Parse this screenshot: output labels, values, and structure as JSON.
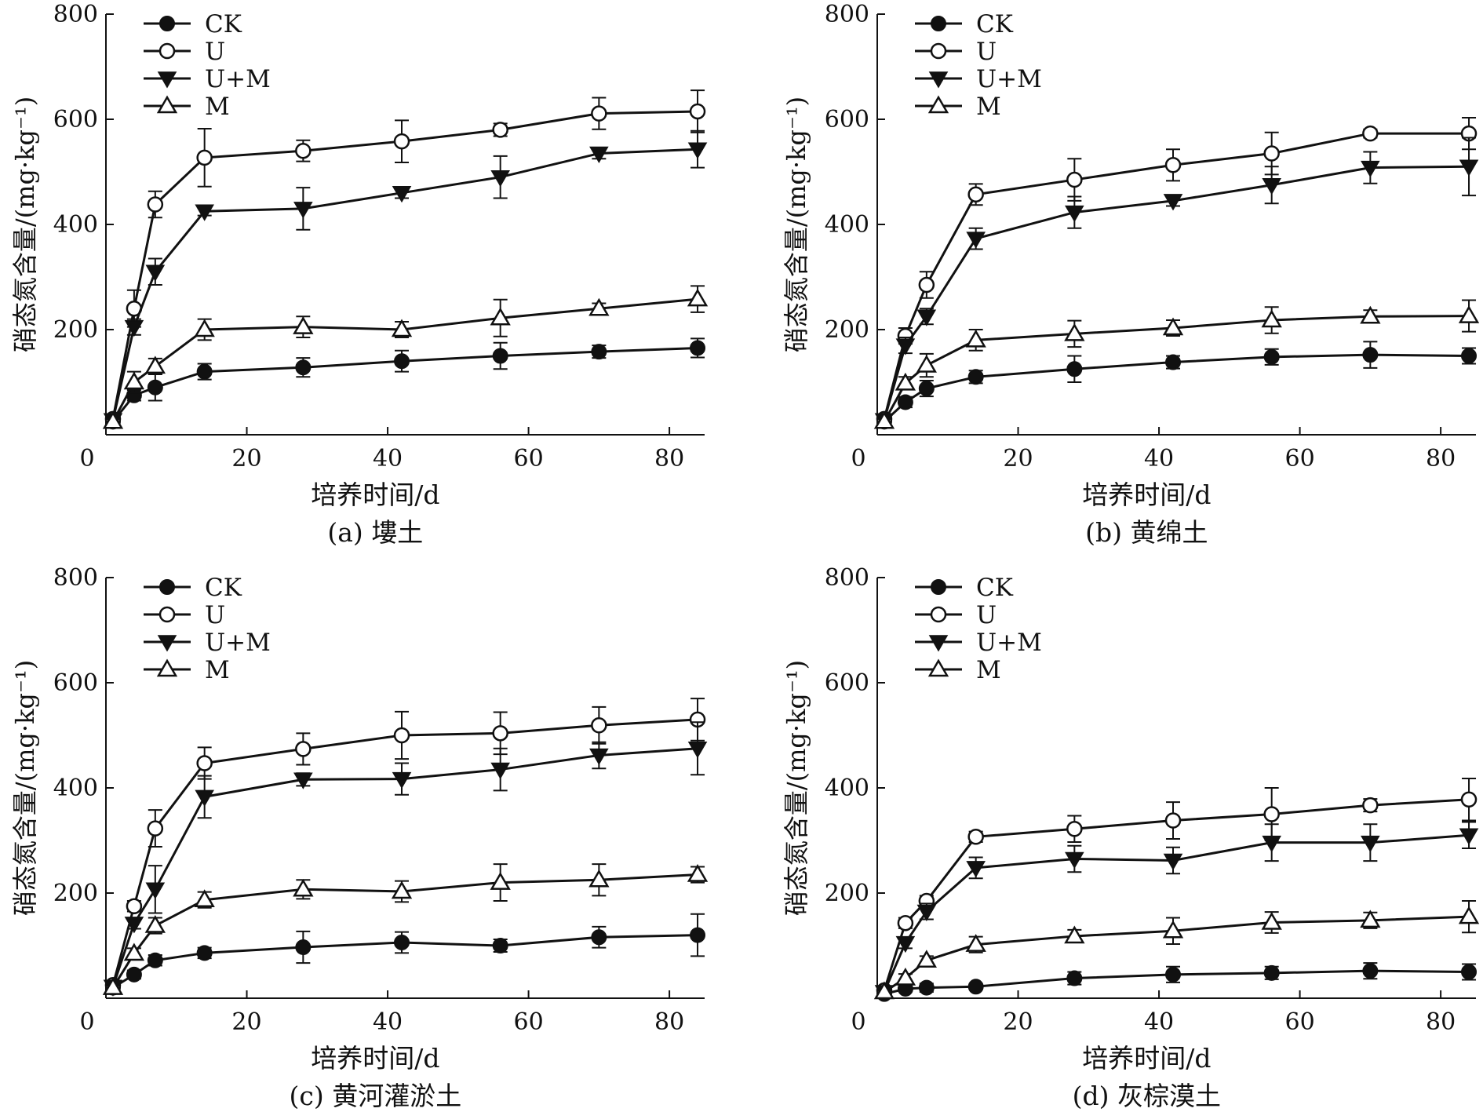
{
  "chart_data": [
    {
      "type": "line",
      "caption": "(a) 塿土",
      "xlabel": "培养时间/d",
      "ylabel": "硝态氮含量/(mg·kg⁻¹)",
      "xlim": [
        0,
        85
      ],
      "ylim": [
        0,
        800
      ],
      "xticks": [
        0,
        20,
        40,
        60,
        80
      ],
      "yticks": [
        200,
        400,
        600,
        800
      ],
      "legend_position": "top-left",
      "x": [
        1,
        4,
        7,
        14,
        28,
        42,
        56,
        70,
        84
      ],
      "series": [
        {
          "name": "CK",
          "marker": "filled-circle",
          "values": [
            25,
            75,
            90,
            120,
            128,
            140,
            150,
            158,
            165
          ],
          "errors": [
            5,
            10,
            25,
            15,
            18,
            20,
            25,
            12,
            18
          ]
        },
        {
          "name": "U",
          "marker": "open-circle",
          "values": [
            30,
            240,
            438,
            527,
            540,
            558,
            580,
            611,
            615
          ],
          "errors": [
            5,
            35,
            25,
            55,
            20,
            40,
            12,
            30,
            40
          ]
        },
        {
          "name": "U+M",
          "marker": "filled-triangle-down",
          "values": [
            28,
            205,
            310,
            425,
            430,
            460,
            490,
            535,
            543
          ],
          "errors": [
            5,
            15,
            25,
            8,
            40,
            10,
            40,
            10,
            35
          ]
        },
        {
          "name": "M",
          "marker": "open-triangle-up",
          "values": [
            25,
            100,
            130,
            200,
            205,
            200,
            222,
            240,
            258
          ],
          "errors": [
            5,
            20,
            15,
            20,
            20,
            15,
            35,
            10,
            25
          ]
        }
      ]
    },
    {
      "type": "line",
      "caption": "(b) 黄绵土",
      "xlabel": "培养时间/d",
      "ylabel": "硝态氮含量/(mg·kg⁻¹)",
      "xlim": [
        0,
        85
      ],
      "ylim": [
        0,
        800
      ],
      "xticks": [
        0,
        20,
        40,
        60,
        80
      ],
      "yticks": [
        200,
        400,
        600,
        800
      ],
      "legend_position": "top-left",
      "x": [
        1,
        4,
        7,
        14,
        28,
        42,
        56,
        70,
        84
      ],
      "series": [
        {
          "name": "CK",
          "marker": "filled-circle",
          "values": [
            25,
            62,
            88,
            110,
            125,
            138,
            148,
            152,
            150
          ],
          "errors": [
            5,
            10,
            15,
            12,
            25,
            12,
            15,
            25,
            15
          ]
        },
        {
          "name": "U",
          "marker": "open-circle",
          "values": [
            30,
            188,
            285,
            457,
            485,
            513,
            535,
            573,
            573
          ],
          "errors": [
            5,
            15,
            25,
            20,
            40,
            30,
            40,
            8,
            30
          ]
        },
        {
          "name": "U+M",
          "marker": "filled-triangle-down",
          "values": [
            28,
            170,
            225,
            373,
            423,
            445,
            475,
            508,
            510
          ],
          "errors": [
            5,
            15,
            15,
            20,
            30,
            10,
            35,
            30,
            55
          ]
        },
        {
          "name": "M",
          "marker": "open-triangle-up",
          "values": [
            25,
            98,
            132,
            180,
            192,
            203,
            218,
            225,
            226
          ],
          "errors": [
            5,
            12,
            22,
            20,
            25,
            15,
            25,
            12,
            30
          ]
        }
      ]
    },
    {
      "type": "line",
      "caption": "(c) 黄河灌淤土",
      "xlabel": "培养时间/d",
      "ylabel": "硝态氮含量/(mg·kg⁻¹)",
      "xlim": [
        0,
        85
      ],
      "ylim": [
        0,
        800
      ],
      "xticks": [
        0,
        20,
        40,
        60,
        80
      ],
      "yticks": [
        200,
        400,
        600,
        800
      ],
      "legend_position": "top-left",
      "x": [
        1,
        4,
        7,
        14,
        28,
        42,
        56,
        70,
        84
      ],
      "series": [
        {
          "name": "CK",
          "marker": "filled-circle",
          "values": [
            20,
            45,
            72,
            86,
            97,
            106,
            100,
            116,
            120
          ],
          "errors": [
            4,
            8,
            10,
            10,
            30,
            20,
            12,
            20,
            40
          ]
        },
        {
          "name": "U",
          "marker": "open-circle",
          "values": [
            25,
            175,
            323,
            447,
            474,
            500,
            504,
            519,
            530
          ],
          "errors": [
            5,
            10,
            35,
            30,
            30,
            45,
            40,
            35,
            40
          ]
        },
        {
          "name": "U+M",
          "marker": "filled-triangle-down",
          "values": [
            22,
            142,
            207,
            383,
            416,
            417,
            435,
            462,
            475
          ],
          "errors": [
            4,
            10,
            45,
            40,
            12,
            30,
            40,
            25,
            50
          ]
        },
        {
          "name": "M",
          "marker": "open-triangle-up",
          "values": [
            20,
            85,
            138,
            187,
            207,
            203,
            220,
            225,
            235
          ],
          "errors": [
            4,
            10,
            15,
            15,
            18,
            20,
            35,
            30,
            15
          ]
        }
      ]
    },
    {
      "type": "line",
      "caption": "(d) 灰棕漠土",
      "xlabel": "培养时间/d",
      "ylabel": "硝态氮含量/(mg·kg⁻¹)",
      "xlim": [
        0,
        85
      ],
      "ylim": [
        0,
        800
      ],
      "xticks": [
        0,
        20,
        40,
        60,
        80
      ],
      "yticks": [
        200,
        400,
        600,
        800
      ],
      "legend_position": "top-left",
      "x": [
        1,
        4,
        7,
        14,
        28,
        42,
        56,
        70,
        84
      ],
      "series": [
        {
          "name": "CK",
          "marker": "filled-circle",
          "values": [
            8,
            18,
            20,
            22,
            38,
            45,
            48,
            52,
            50
          ],
          "errors": [
            3,
            5,
            8,
            5,
            12,
            15,
            12,
            15,
            15
          ]
        },
        {
          "name": "U",
          "marker": "open-circle",
          "values": [
            15,
            143,
            185,
            307,
            322,
            338,
            350,
            367,
            378
          ],
          "errors": [
            4,
            10,
            10,
            10,
            25,
            35,
            50,
            12,
            40
          ]
        },
        {
          "name": "U+M",
          "marker": "filled-triangle-down",
          "values": [
            12,
            105,
            165,
            248,
            265,
            262,
            296,
            296,
            310
          ],
          "errors": [
            4,
            10,
            15,
            20,
            25,
            25,
            35,
            35,
            25
          ]
        },
        {
          "name": "M",
          "marker": "open-triangle-up",
          "values": [
            12,
            38,
            72,
            102,
            118,
            128,
            144,
            148,
            155
          ],
          "errors": [
            4,
            8,
            8,
            15,
            12,
            25,
            20,
            15,
            30
          ]
        }
      ]
    }
  ]
}
